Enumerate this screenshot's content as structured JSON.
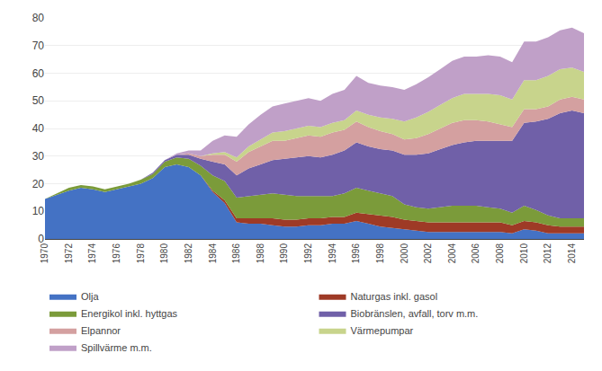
{
  "chart_data": {
    "type": "area",
    "stacked": true,
    "x": [
      1970,
      1971,
      1972,
      1973,
      1974,
      1975,
      1976,
      1977,
      1978,
      1979,
      1980,
      1981,
      1982,
      1983,
      1984,
      1985,
      1986,
      1987,
      1988,
      1989,
      1990,
      1991,
      1992,
      1993,
      1994,
      1995,
      1996,
      1997,
      1998,
      1999,
      2000,
      2001,
      2002,
      2003,
      2004,
      2005,
      2006,
      2007,
      2008,
      2009,
      2010,
      2011,
      2012,
      2013,
      2014,
      2015
    ],
    "series": [
      {
        "name": "Olja",
        "color": "#4472C4",
        "values": [
          14.5,
          16.0,
          17.5,
          18.5,
          18.0,
          17.0,
          18.0,
          19.0,
          20.0,
          22.0,
          26.0,
          27.0,
          26.0,
          23.0,
          17.0,
          13.0,
          6.0,
          5.5,
          5.5,
          5.0,
          4.5,
          4.5,
          5.0,
          5.0,
          5.5,
          5.5,
          6.5,
          5.5,
          4.5,
          4.0,
          3.5,
          3.0,
          2.5,
          2.5,
          2.5,
          2.5,
          2.5,
          2.5,
          2.5,
          2.0,
          3.5,
          3.0,
          2.0,
          2.0,
          2.0,
          2.0
        ]
      },
      {
        "name": "Naturgas inkl. gasol",
        "color": "#9E3A26",
        "values": [
          0.0,
          0.0,
          0.0,
          0.0,
          0.0,
          0.0,
          0.0,
          0.0,
          0.0,
          0.0,
          0.0,
          0.0,
          0.0,
          0.0,
          0.5,
          1.0,
          1.5,
          2.0,
          2.0,
          2.5,
          2.5,
          2.5,
          2.5,
          2.5,
          2.5,
          2.5,
          3.0,
          3.5,
          4.0,
          4.0,
          3.5,
          3.5,
          3.5,
          3.5,
          3.5,
          3.5,
          3.5,
          3.5,
          3.5,
          3.0,
          3.0,
          3.0,
          3.0,
          2.5,
          2.5,
          2.5
        ]
      },
      {
        "name": "Energikol inkl. hyttgas",
        "color": "#7B9B3A",
        "values": [
          0.0,
          0.5,
          1.0,
          1.0,
          1.0,
          1.0,
          1.0,
          1.0,
          1.5,
          1.5,
          2.0,
          2.5,
          3.0,
          3.5,
          5.5,
          7.0,
          7.5,
          8.0,
          8.5,
          9.0,
          9.0,
          8.5,
          8.0,
          8.0,
          7.5,
          8.5,
          9.0,
          8.5,
          8.0,
          7.5,
          5.5,
          5.0,
          5.0,
          5.5,
          6.0,
          6.0,
          6.0,
          5.5,
          5.0,
          4.5,
          5.5,
          4.5,
          3.5,
          3.0,
          3.0,
          3.0
        ]
      },
      {
        "name": "Biobränslen, avfall, torv m.m.",
        "color": "#7060A8",
        "values": [
          0.0,
          0.0,
          0.0,
          0.0,
          0.0,
          0.0,
          0.0,
          0.0,
          0.0,
          0.5,
          0.5,
          1.0,
          1.5,
          2.5,
          5.0,
          6.0,
          8.0,
          10.0,
          11.0,
          12.0,
          13.0,
          14.0,
          14.5,
          14.0,
          15.0,
          15.5,
          16.5,
          16.0,
          16.0,
          16.5,
          18.0,
          19.0,
          20.0,
          21.0,
          22.0,
          23.0,
          23.5,
          24.0,
          24.5,
          26.0,
          30.0,
          32.0,
          35.0,
          38.0,
          39.0,
          38.0
        ]
      },
      {
        "name": "Elpannor",
        "color": "#D4A0A0",
        "values": [
          0.0,
          0.0,
          0.0,
          0.0,
          0.0,
          0.0,
          0.0,
          0.0,
          0.0,
          0.0,
          0.0,
          0.0,
          0.5,
          1.0,
          2.5,
          3.5,
          5.0,
          6.0,
          6.5,
          7.0,
          6.5,
          7.0,
          7.5,
          7.5,
          8.0,
          7.5,
          7.5,
          7.0,
          6.5,
          6.0,
          5.5,
          6.0,
          7.0,
          7.5,
          8.0,
          8.0,
          7.5,
          7.0,
          6.0,
          5.0,
          5.0,
          4.5,
          4.5,
          5.0,
          5.0,
          5.0
        ]
      },
      {
        "name": "Värmepumpar",
        "color": "#C8D48C",
        "values": [
          0.0,
          0.0,
          0.0,
          0.0,
          0.0,
          0.0,
          0.0,
          0.0,
          0.0,
          0.0,
          0.0,
          0.0,
          0.0,
          0.0,
          0.5,
          1.0,
          1.5,
          2.0,
          2.5,
          3.0,
          3.5,
          3.5,
          3.5,
          3.5,
          3.5,
          3.5,
          4.0,
          4.5,
          5.0,
          5.5,
          6.5,
          7.5,
          8.0,
          8.5,
          9.0,
          9.5,
          9.5,
          10.0,
          10.5,
          10.0,
          10.5,
          10.5,
          11.0,
          11.0,
          10.5,
          10.0
        ]
      },
      {
        "name": "Spillvärme m.m.",
        "color": "#C0A0C8",
        "values": [
          0.0,
          0.0,
          0.0,
          0.0,
          0.0,
          0.0,
          0.0,
          0.0,
          0.0,
          0.0,
          0.0,
          0.5,
          1.0,
          2.0,
          4.5,
          6.0,
          7.5,
          8.0,
          9.0,
          9.5,
          10.0,
          10.0,
          10.0,
          9.5,
          10.5,
          11.0,
          12.5,
          11.5,
          11.5,
          11.5,
          11.5,
          12.0,
          12.5,
          13.0,
          13.5,
          13.5,
          13.5,
          14.0,
          14.0,
          13.5,
          14.0,
          14.0,
          14.0,
          14.0,
          14.5,
          14.0
        ]
      }
    ],
    "xlim": [
      1970,
      2015
    ],
    "xticks": [
      1970,
      1972,
      1974,
      1976,
      1978,
      1980,
      1982,
      1984,
      1986,
      1988,
      1990,
      1992,
      1994,
      1996,
      1998,
      2000,
      2002,
      2004,
      2006,
      2008,
      2010,
      2012,
      2014
    ],
    "ylim": [
      0,
      80
    ],
    "yticks": [
      0,
      10,
      20,
      30,
      40,
      50,
      60,
      70,
      80
    ],
    "grid": true,
    "legend": "bottom"
  }
}
